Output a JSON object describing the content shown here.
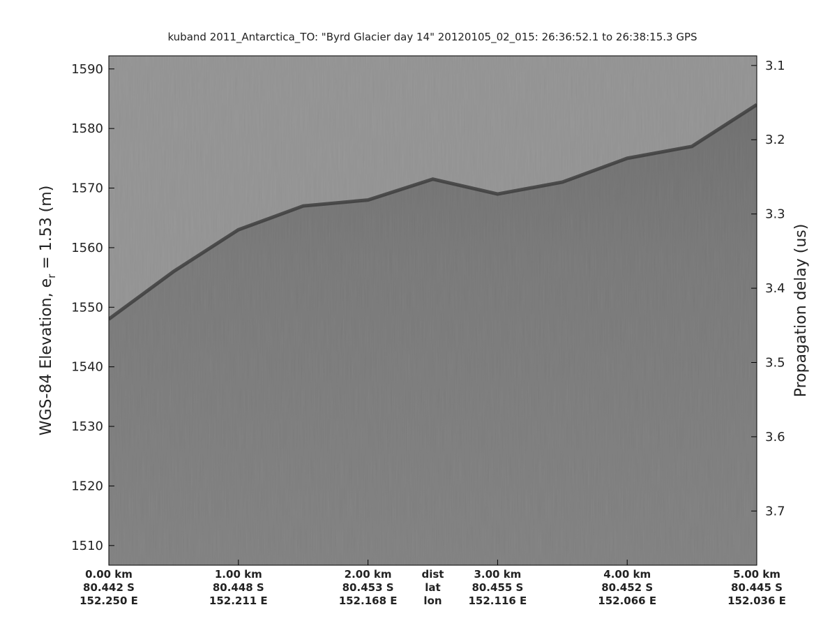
{
  "chart_data": {
    "type": "echogram",
    "title": "kuband 2011_Antarctica_TO: \"Byrd Glacier day 14\"  20120105_02_015: 26:36:52.1 to 26:38:15.3 GPS",
    "y_label": [
      "WGS-84 Elevation, e",
      "r",
      " = 1.53 (m)"
    ],
    "y2_label": "Propagation delay (us)",
    "xlim": [
      0,
      5
    ],
    "xticks": [
      {
        "value": 0,
        "label": "0.00 km"
      },
      {
        "value": 1,
        "label": "1.00 km"
      },
      {
        "value": 2,
        "label": "2.00 km"
      },
      {
        "value": 3,
        "label": "3.00 km"
      },
      {
        "value": 4,
        "label": "4.00 km"
      },
      {
        "value": 5,
        "label": "5.00 km"
      }
    ],
    "lat_labels": [
      "80.442 S",
      "80.448 S",
      "80.453 S",
      "80.455 S",
      "80.452 S",
      "80.445 S"
    ],
    "lon_labels": [
      "152.250 E",
      "152.211 E",
      "152.168 E",
      "152.116 E",
      "152.066 E",
      "152.036 E"
    ],
    "row_names": [
      "dist",
      "lat",
      "lon"
    ],
    "ylim": [
      1506.7,
      1592.2
    ],
    "yticks": [
      1510,
      1520,
      1530,
      1540,
      1550,
      1560,
      1570,
      1580,
      1590
    ],
    "y2lim": [
      3.773,
      3.087
    ],
    "y2ticks": [
      3.1,
      3.2,
      3.3,
      3.4,
      3.5,
      3.6,
      3.7
    ],
    "surface": {
      "x": [
        0,
        0.5,
        1,
        1.5,
        2,
        2.5,
        3,
        3.5,
        4,
        4.5,
        5
      ],
      "values": [
        1548,
        1556,
        1563,
        1567,
        1568,
        1571.5,
        1569,
        1571,
        1575,
        1577,
        1584
      ]
    }
  }
}
